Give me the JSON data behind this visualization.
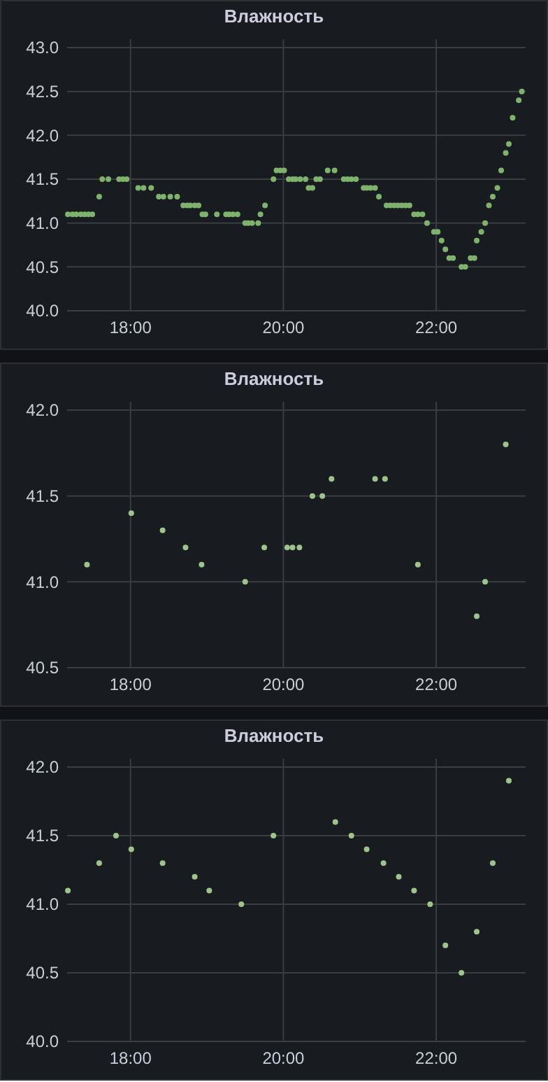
{
  "chart_data": [
    {
      "type": "scatter",
      "title": "Влажность",
      "grid": true,
      "marker": "circle",
      "xlim": [
        17.17,
        23.17
      ],
      "ylim": [
        40,
        43
      ],
      "xticks": [
        {
          "value": 18,
          "label": "18:00"
        },
        {
          "value": 20,
          "label": "20:00"
        },
        {
          "value": 22,
          "label": "22:00"
        }
      ],
      "yticks": [
        {
          "value": 40,
          "label": "40.0"
        },
        {
          "value": 40.5,
          "label": "40.5"
        },
        {
          "value": 41,
          "label": "41.0"
        },
        {
          "value": 41.5,
          "label": "41.5"
        },
        {
          "value": 42,
          "label": "42.0"
        },
        {
          "value": 42.5,
          "label": "42.5"
        },
        {
          "value": 43,
          "label": "43.0"
        }
      ],
      "series": [
        {
          "color": "#7eb26d",
          "x": [
            17.18,
            17.24,
            17.29,
            17.35,
            17.4,
            17.45,
            17.5,
            17.59,
            17.63,
            17.71,
            17.85,
            17.9,
            17.95,
            18.1,
            18.17,
            18.27,
            18.37,
            18.43,
            18.52,
            18.61,
            18.69,
            18.74,
            18.78,
            18.84,
            18.89,
            18.94,
            18.98,
            19.13,
            19.25,
            19.29,
            19.34,
            19.4,
            19.5,
            19.54,
            19.59,
            19.67,
            19.7,
            19.76,
            19.87,
            19.91,
            19.96,
            20.01,
            20.07,
            20.12,
            20.16,
            20.22,
            20.29,
            20.33,
            20.38,
            20.43,
            20.48,
            20.58,
            20.67,
            20.79,
            20.84,
            20.89,
            20.95,
            21.05,
            21.09,
            21.14,
            21.2,
            21.25,
            21.35,
            21.4,
            21.45,
            21.5,
            21.55,
            21.6,
            21.65,
            21.71,
            21.76,
            21.82,
            21.88,
            21.97,
            22.02,
            22.07,
            22.12,
            22.17,
            22.22,
            22.33,
            22.38,
            22.45,
            22.5,
            22.53,
            22.59,
            22.64,
            22.69,
            22.74,
            22.8,
            22.85,
            22.91,
            22.95,
            23.0,
            23.08,
            23.12
          ],
          "values": [
            41.1,
            41.1,
            41.1,
            41.1,
            41.1,
            41.1,
            41.1,
            41.3,
            41.5,
            41.5,
            41.5,
            41.5,
            41.5,
            41.4,
            41.4,
            41.4,
            41.3,
            41.3,
            41.3,
            41.3,
            41.2,
            41.2,
            41.2,
            41.2,
            41.2,
            41.1,
            41.1,
            41.1,
            41.1,
            41.1,
            41.1,
            41.1,
            41.0,
            41.0,
            41.0,
            41.0,
            41.1,
            41.2,
            41.5,
            41.6,
            41.6,
            41.6,
            41.5,
            41.5,
            41.5,
            41.5,
            41.5,
            41.4,
            41.4,
            41.5,
            41.5,
            41.6,
            41.6,
            41.5,
            41.5,
            41.5,
            41.5,
            41.4,
            41.4,
            41.4,
            41.4,
            41.3,
            41.2,
            41.2,
            41.2,
            41.2,
            41.2,
            41.2,
            41.2,
            41.1,
            41.1,
            41.1,
            41.0,
            40.9,
            40.9,
            40.8,
            40.7,
            40.6,
            40.6,
            40.5,
            40.5,
            40.6,
            40.6,
            40.8,
            40.9,
            41.0,
            41.2,
            41.3,
            41.4,
            41.6,
            41.8,
            41.9,
            42.2,
            42.4,
            42.5
          ]
        }
      ]
    },
    {
      "type": "scatter",
      "title": "Влажность",
      "grid": true,
      "marker": "circle",
      "xlim": [
        17.17,
        23.17
      ],
      "ylim": [
        40.5,
        42
      ],
      "xticks": [
        {
          "value": 18,
          "label": "18:00"
        },
        {
          "value": 20,
          "label": "20:00"
        },
        {
          "value": 22,
          "label": "22:00"
        }
      ],
      "yticks": [
        {
          "value": 40.5,
          "label": "40.5"
        },
        {
          "value": 41,
          "label": "41.0"
        },
        {
          "value": 41.5,
          "label": "41.5"
        },
        {
          "value": 42,
          "label": "42.0"
        }
      ],
      "series": [
        {
          "color": "#9cc48c",
          "x": [
            17.43,
            18.01,
            18.42,
            18.72,
            18.93,
            19.5,
            19.75,
            20.05,
            20.12,
            20.21,
            20.38,
            20.51,
            20.63,
            21.2,
            21.33,
            21.76,
            22.53,
            22.64,
            22.91
          ],
          "values": [
            41.1,
            41.4,
            41.3,
            41.2,
            41.1,
            41.0,
            41.2,
            41.2,
            41.2,
            41.2,
            41.5,
            41.5,
            41.6,
            41.6,
            41.6,
            41.1,
            40.8,
            41.0,
            41.8
          ]
        }
      ]
    },
    {
      "type": "scatter",
      "title": "Влажность",
      "grid": true,
      "marker": "circle",
      "xlim": [
        17.17,
        23.17
      ],
      "ylim": [
        40,
        42
      ],
      "xticks": [
        {
          "value": 18,
          "label": "18:00"
        },
        {
          "value": 20,
          "label": "20:00"
        },
        {
          "value": 22,
          "label": "22:00"
        }
      ],
      "yticks": [
        {
          "value": 40,
          "label": "40.0"
        },
        {
          "value": 40.5,
          "label": "40.5"
        },
        {
          "value": 41,
          "label": "41.0"
        },
        {
          "value": 41.5,
          "label": "41.5"
        },
        {
          "value": 42,
          "label": "42.0"
        }
      ],
      "series": [
        {
          "color": "#9cc48c",
          "x": [
            17.18,
            17.59,
            17.81,
            18.01,
            18.42,
            18.84,
            19.03,
            19.45,
            19.87,
            20.68,
            20.89,
            21.09,
            21.31,
            21.51,
            21.71,
            21.92,
            22.12,
            22.33,
            22.53,
            22.74,
            22.95
          ],
          "values": [
            41.1,
            41.3,
            41.5,
            41.4,
            41.3,
            41.2,
            41.1,
            41.0,
            41.5,
            41.6,
            41.5,
            41.4,
            41.3,
            41.2,
            41.1,
            41.0,
            40.7,
            40.5,
            40.8,
            41.3,
            41.9
          ]
        }
      ]
    }
  ]
}
